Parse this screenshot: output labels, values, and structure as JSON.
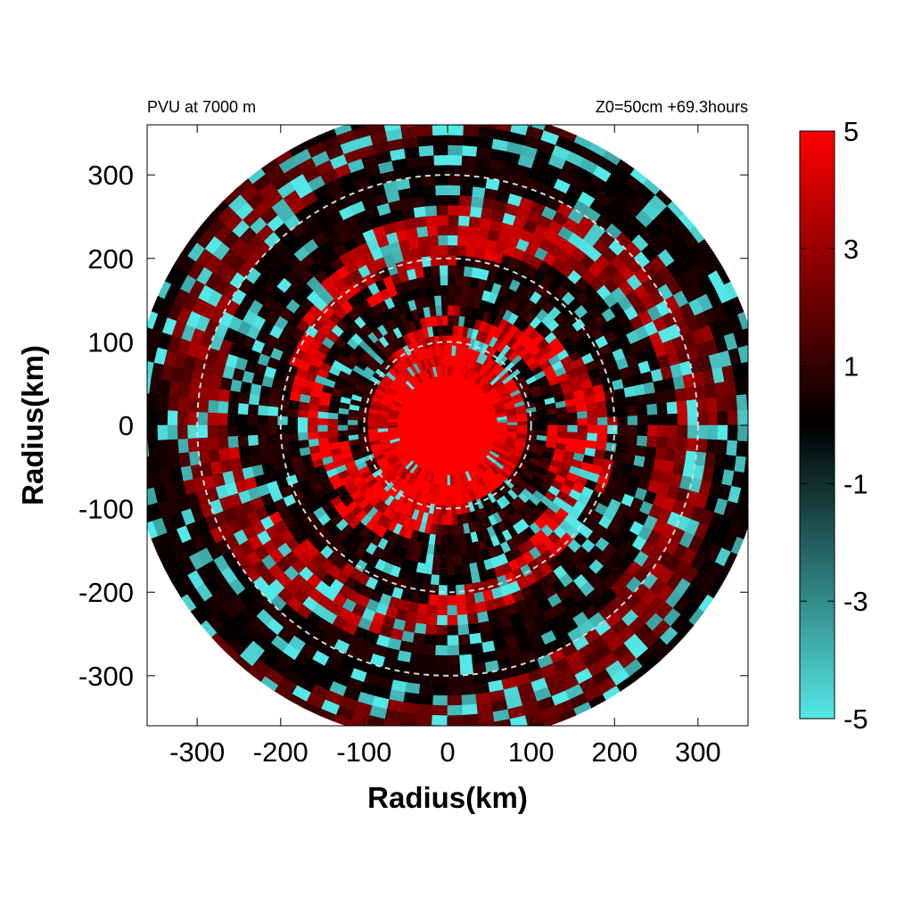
{
  "header": {
    "left": "PVU at  7000 m",
    "right": "Z0=50cm  +69.3hours"
  },
  "chart_data": {
    "type": "heatmap",
    "projection": "polar storm-centered field",
    "xlabel": "Radius(km)",
    "ylabel": "Radius(km)",
    "xlim": [
      -360,
      360
    ],
    "ylim": [
      -360,
      360
    ],
    "xticks": [
      -300,
      -200,
      -100,
      0,
      100,
      200,
      300
    ],
    "yticks": [
      300,
      200,
      100,
      0,
      -100,
      -200,
      -300
    ],
    "xtick_labels": [
      "-300",
      "-200",
      "-100",
      "0",
      "100",
      "200",
      "300"
    ],
    "ytick_labels": [
      "300",
      "200",
      "100",
      "0",
      "-100",
      "-200",
      "-300"
    ],
    "data_extent_radius_km": 380,
    "reference_circles_km": [
      100,
      200,
      300
    ],
    "field_description": "potential vorticity; saturated positive core (>5 PVU) inside ~50 km, alternating positive/negative spiral bands beyond",
    "colorbar": {
      "min": -5,
      "max": 5,
      "tick_values": [
        5,
        3,
        1,
        -1,
        -3,
        -5
      ],
      "tick_labels": [
        "5",
        "3",
        "1",
        "-1",
        "-3",
        "-5"
      ],
      "colors": {
        "max": "#ff0000",
        "mid": "#000000",
        "min": "#55e8e8"
      }
    },
    "grid": false,
    "legend_position": "right"
  }
}
